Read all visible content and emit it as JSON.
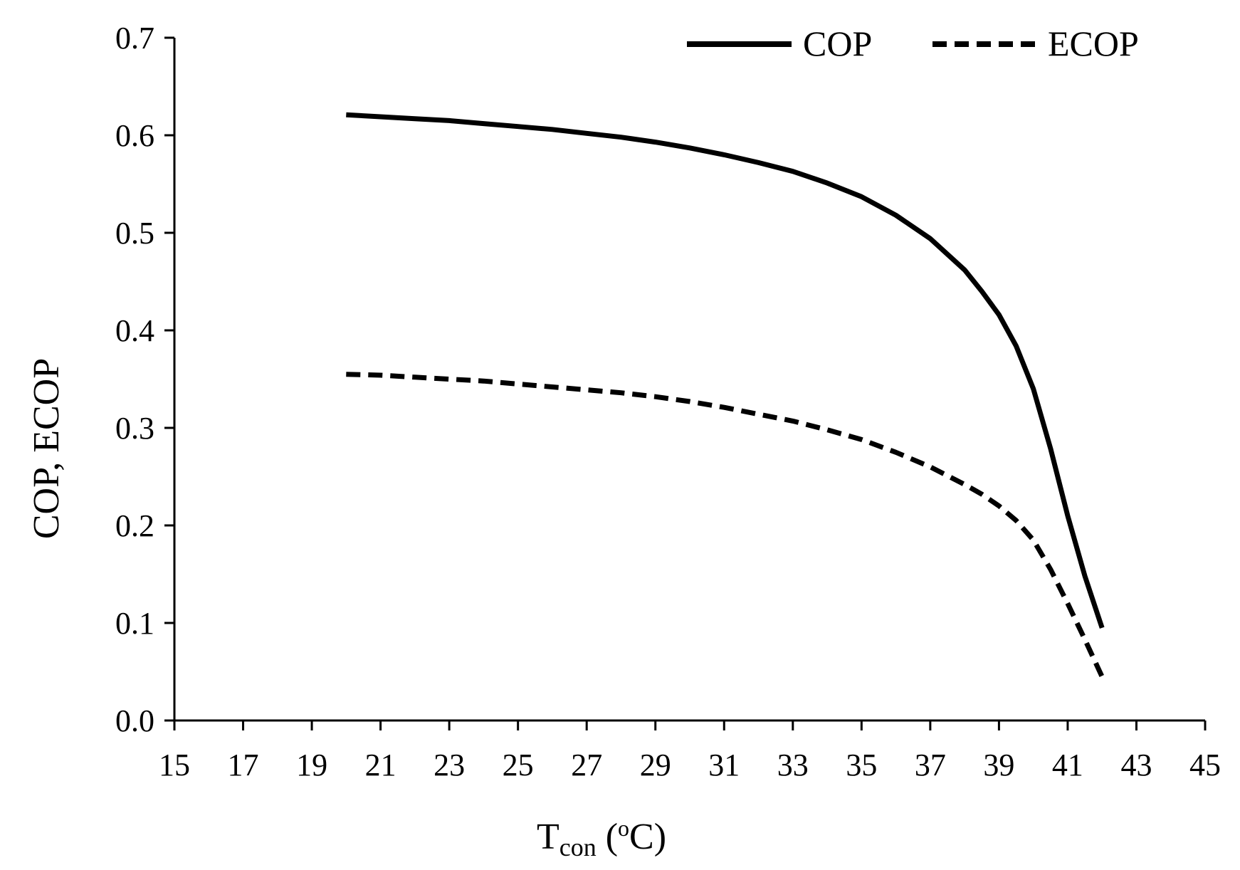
{
  "chart_data": {
    "type": "line",
    "title": "",
    "xlabel": {
      "main": "T",
      "subscript": "con",
      "unit_open": " (",
      "unit_sup": "o",
      "unit_close": "C)"
    },
    "ylabel": "COP, ECOP",
    "xlim": [
      15,
      45
    ],
    "ylim": [
      0,
      0.7
    ],
    "xticks": [
      15,
      17,
      19,
      21,
      23,
      25,
      27,
      29,
      31,
      33,
      35,
      37,
      39,
      41,
      43,
      45
    ],
    "xtick_labels": [
      "15",
      "17",
      "19",
      "21",
      "23",
      "25",
      "27",
      "29",
      "31",
      "33",
      "35",
      "37",
      "39",
      "41",
      "43",
      "45"
    ],
    "yticks": [
      0,
      0.1,
      0.2,
      0.3,
      0.4,
      0.5,
      0.6,
      0.7
    ],
    "ytick_labels": [
      "0.0",
      "0.1",
      "0.2",
      "0.3",
      "0.4",
      "0.5",
      "0.6",
      "0.7"
    ],
    "grid": false,
    "legend_position": "top-right",
    "series": [
      {
        "name": "COP",
        "style": "solid",
        "color": "#000000",
        "x": [
          20,
          21,
          22,
          23,
          24,
          25,
          26,
          27,
          28,
          29,
          30,
          31,
          32,
          33,
          34,
          35,
          36,
          37,
          38,
          38.5,
          39,
          39.5,
          40,
          40.5,
          41,
          41.5,
          42
        ],
        "y": [
          0.621,
          0.619,
          0.617,
          0.615,
          0.612,
          0.609,
          0.606,
          0.602,
          0.598,
          0.593,
          0.587,
          0.58,
          0.572,
          0.563,
          0.551,
          0.537,
          0.518,
          0.494,
          0.462,
          0.44,
          0.416,
          0.384,
          0.34,
          0.279,
          0.21,
          0.148,
          0.095
        ]
      },
      {
        "name": "ECOP",
        "style": "dashed",
        "color": "#000000",
        "x": [
          20,
          21,
          22,
          23,
          24,
          25,
          26,
          27,
          28,
          29,
          30,
          31,
          32,
          33,
          34,
          35,
          36,
          37,
          38,
          38.5,
          39,
          39.5,
          40,
          40.5,
          41,
          41.5,
          42
        ],
        "y": [
          0.355,
          0.354,
          0.352,
          0.35,
          0.348,
          0.345,
          0.342,
          0.339,
          0.336,
          0.332,
          0.327,
          0.321,
          0.314,
          0.307,
          0.298,
          0.288,
          0.275,
          0.26,
          0.242,
          0.232,
          0.22,
          0.205,
          0.185,
          0.155,
          0.12,
          0.083,
          0.045
        ]
      }
    ]
  }
}
